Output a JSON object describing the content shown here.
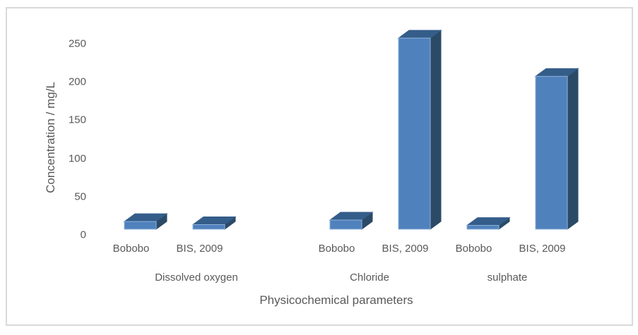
{
  "chart_data": {
    "type": "bar",
    "title": "",
    "xlabel": "Physicochemical parameters",
    "ylabel": "Concentration / mg/L",
    "ylim": [
      0,
      250
    ],
    "yticks": [
      0,
      50,
      100,
      150,
      200,
      250
    ],
    "grid": false,
    "legend": false,
    "style": "3d-column",
    "colors": {
      "bar_front": "#4f81bd",
      "bar_top": "#345d8a",
      "bar_side": "#2b4a66",
      "bar_edge_highlight": "#8fb2da",
      "text": "#595959",
      "frame_border": "#d9d9d9"
    },
    "groups": [
      {
        "label": "Dissolved oxygen",
        "bars": [
          {
            "label": "Bobobo",
            "value": 10
          },
          {
            "label": "BIS, 2009",
            "value": 6
          }
        ]
      },
      {
        "label": "Chloride",
        "bars": [
          {
            "label": "Bobobo",
            "value": 12
          },
          {
            "label": "BIS, 2009",
            "value": 250
          }
        ]
      },
      {
        "label": "sulphate",
        "bars": [
          {
            "label": "Bobobo",
            "value": 5
          },
          {
            "label": "BIS, 2009",
            "value": 200
          }
        ]
      }
    ]
  }
}
